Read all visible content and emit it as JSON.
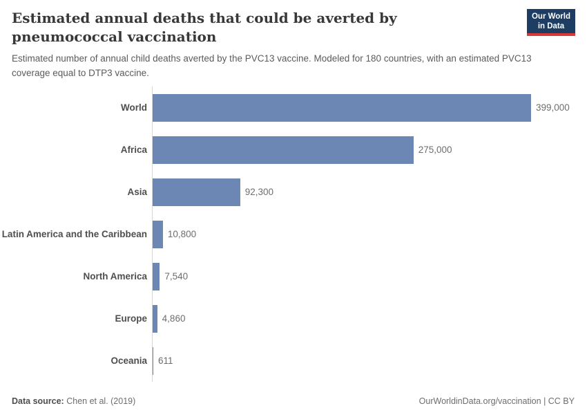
{
  "header": {
    "title": "Estimated annual deaths that could be averted by pneumococcal vaccination",
    "subtitle": "Estimated number of annual child deaths averted by the PVC13 vaccine. Modeled for 180 countries, with an estimated PVC13 coverage equal to DTP3 vaccine.",
    "logo": {
      "line1": "Our World",
      "line2": "in Data",
      "background_color": "#1d3d63",
      "accent_color": "#d93a35"
    }
  },
  "chart_data": {
    "type": "bar",
    "orientation": "horizontal",
    "title": "Estimated annual deaths that could be averted by pneumococcal vaccination",
    "categories": [
      "World",
      "Africa",
      "Asia",
      "Latin America and the Caribbean",
      "North America",
      "Europe",
      "Oceania"
    ],
    "values": [
      399000,
      275000,
      92300,
      10800,
      7540,
      4860,
      611
    ],
    "value_labels": [
      "399,000",
      "275,000",
      "92,300",
      "10,800",
      "7,540",
      "4,860",
      "611"
    ],
    "xlabel": "",
    "ylabel": "",
    "xlim": [
      0,
      399000
    ],
    "grid": false,
    "legend": "none",
    "bar_color": "#6c87b3",
    "axis_line_color": "#d7d7d7"
  },
  "footer": {
    "source_label": "Data source:",
    "source_value": "Chen et al. (2019)",
    "link": "OurWorldinData.org/vaccination | CC BY"
  }
}
